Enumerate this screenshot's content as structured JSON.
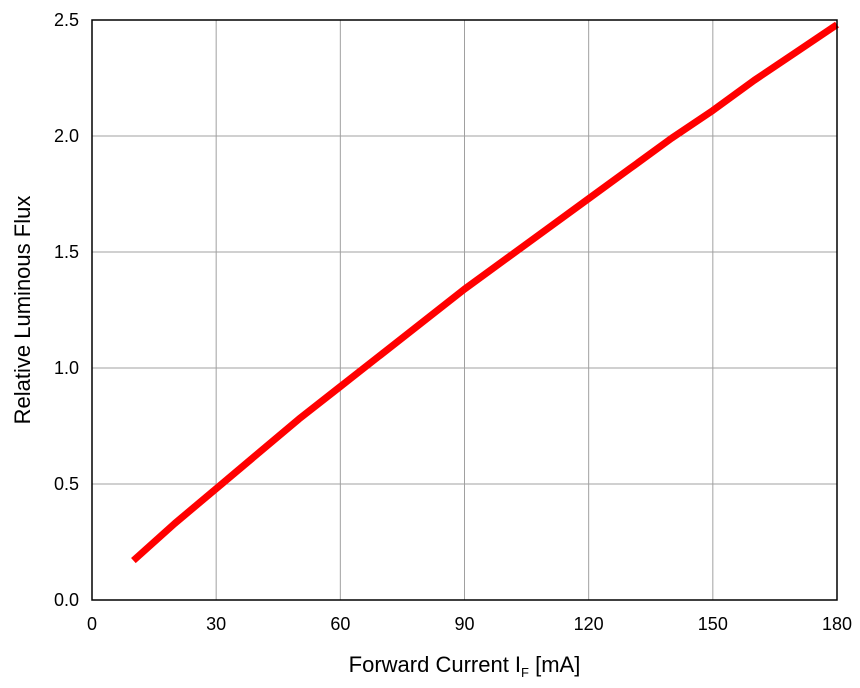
{
  "chart_data": {
    "type": "line",
    "title": "",
    "xlabel": {
      "prefix": "Forward Current I",
      "subscript": "F",
      "suffix": " [mA]"
    },
    "ylabel": "Relative Luminous Flux",
    "xlim": [
      0,
      180
    ],
    "ylim": [
      0,
      2.5
    ],
    "x_ticks": [
      0,
      30,
      60,
      90,
      120,
      150,
      180
    ],
    "x_tick_labels": [
      "0",
      "30",
      "60",
      "90",
      "120",
      "150",
      "180"
    ],
    "y_ticks": [
      0,
      0.5,
      1,
      1.5,
      2,
      2.5
    ],
    "y_tick_labels": [
      "0.0",
      "0.5",
      "1.0",
      "1.5",
      "2.0",
      "2.5"
    ],
    "grid": true,
    "legend": "none",
    "series": [
      {
        "color": "#ff0000",
        "x": [
          10,
          20,
          30,
          40,
          50,
          60,
          70,
          80,
          90,
          100,
          110,
          120,
          130,
          140,
          150,
          160,
          170,
          180
        ],
        "y": [
          0.17,
          0.33,
          0.48,
          0.63,
          0.78,
          0.92,
          1.06,
          1.2,
          1.34,
          1.47,
          1.6,
          1.73,
          1.86,
          1.99,
          2.11,
          2.24,
          2.36,
          2.48
        ]
      }
    ]
  }
}
